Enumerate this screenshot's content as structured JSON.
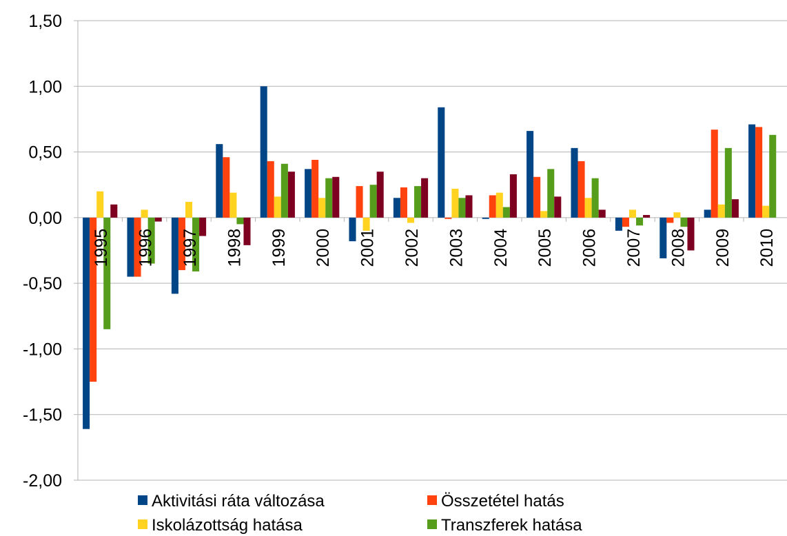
{
  "chart_data": {
    "type": "bar",
    "categories": [
      "1995",
      "1996",
      "1997",
      "1998",
      "1999",
      "2000",
      "2001",
      "2002",
      "2003",
      "2004",
      "2005",
      "2006",
      "2007",
      "2008",
      "2009",
      "2010"
    ],
    "series": [
      {
        "name": "Aktivitási ráta változása",
        "color": "#004586",
        "values": [
          -1.61,
          -0.45,
          -0.58,
          0.56,
          1.0,
          0.37,
          -0.18,
          0.15,
          0.84,
          -0.01,
          0.66,
          0.53,
          -0.1,
          -0.31,
          0.06,
          0.71
        ]
      },
      {
        "name": "Összetétel hatás",
        "color": "#ff420e",
        "values": [
          -1.25,
          -0.45,
          -0.4,
          0.46,
          0.43,
          0.44,
          0.24,
          0.23,
          -0.01,
          0.17,
          0.31,
          0.43,
          -0.07,
          -0.04,
          0.67,
          0.69
        ]
      },
      {
        "name": "Iskolázottság hatása",
        "color": "#ffd320",
        "values": [
          0.2,
          0.06,
          0.12,
          0.19,
          0.16,
          0.15,
          -0.1,
          -0.04,
          0.22,
          0.19,
          0.05,
          0.15,
          0.06,
          0.04,
          0.1,
          0.09
        ]
      },
      {
        "name": "Transzferek hatása",
        "color": "#579d1c",
        "values": [
          -0.85,
          -0.35,
          -0.41,
          -0.05,
          0.41,
          0.3,
          0.25,
          0.24,
          0.15,
          0.08,
          0.37,
          0.3,
          -0.06,
          -0.07,
          0.53,
          0.63
        ]
      },
      {
        "color": "#7e0021",
        "values": [
          0.1,
          -0.03,
          -0.14,
          -0.21,
          0.35,
          0.31,
          0.35,
          0.3,
          0.17,
          0.33,
          0.16,
          0.06,
          0.02,
          -0.25,
          0.14,
          null
        ]
      }
    ],
    "ylim": [
      -2,
      1.5
    ],
    "yticks": [
      {
        "value": -2,
        "label": "-2,00"
      },
      {
        "value": -1.5,
        "label": "-1,50"
      },
      {
        "value": -1,
        "label": "-1,00"
      },
      {
        "value": -0.5,
        "label": "-0,50"
      },
      {
        "value": 0,
        "label": "0,00"
      },
      {
        "value": 0.5,
        "label": "0,50"
      },
      {
        "value": 1,
        "label": "1,00"
      },
      {
        "value": 1.5,
        "label": "1,50"
      }
    ],
    "grid": true
  }
}
